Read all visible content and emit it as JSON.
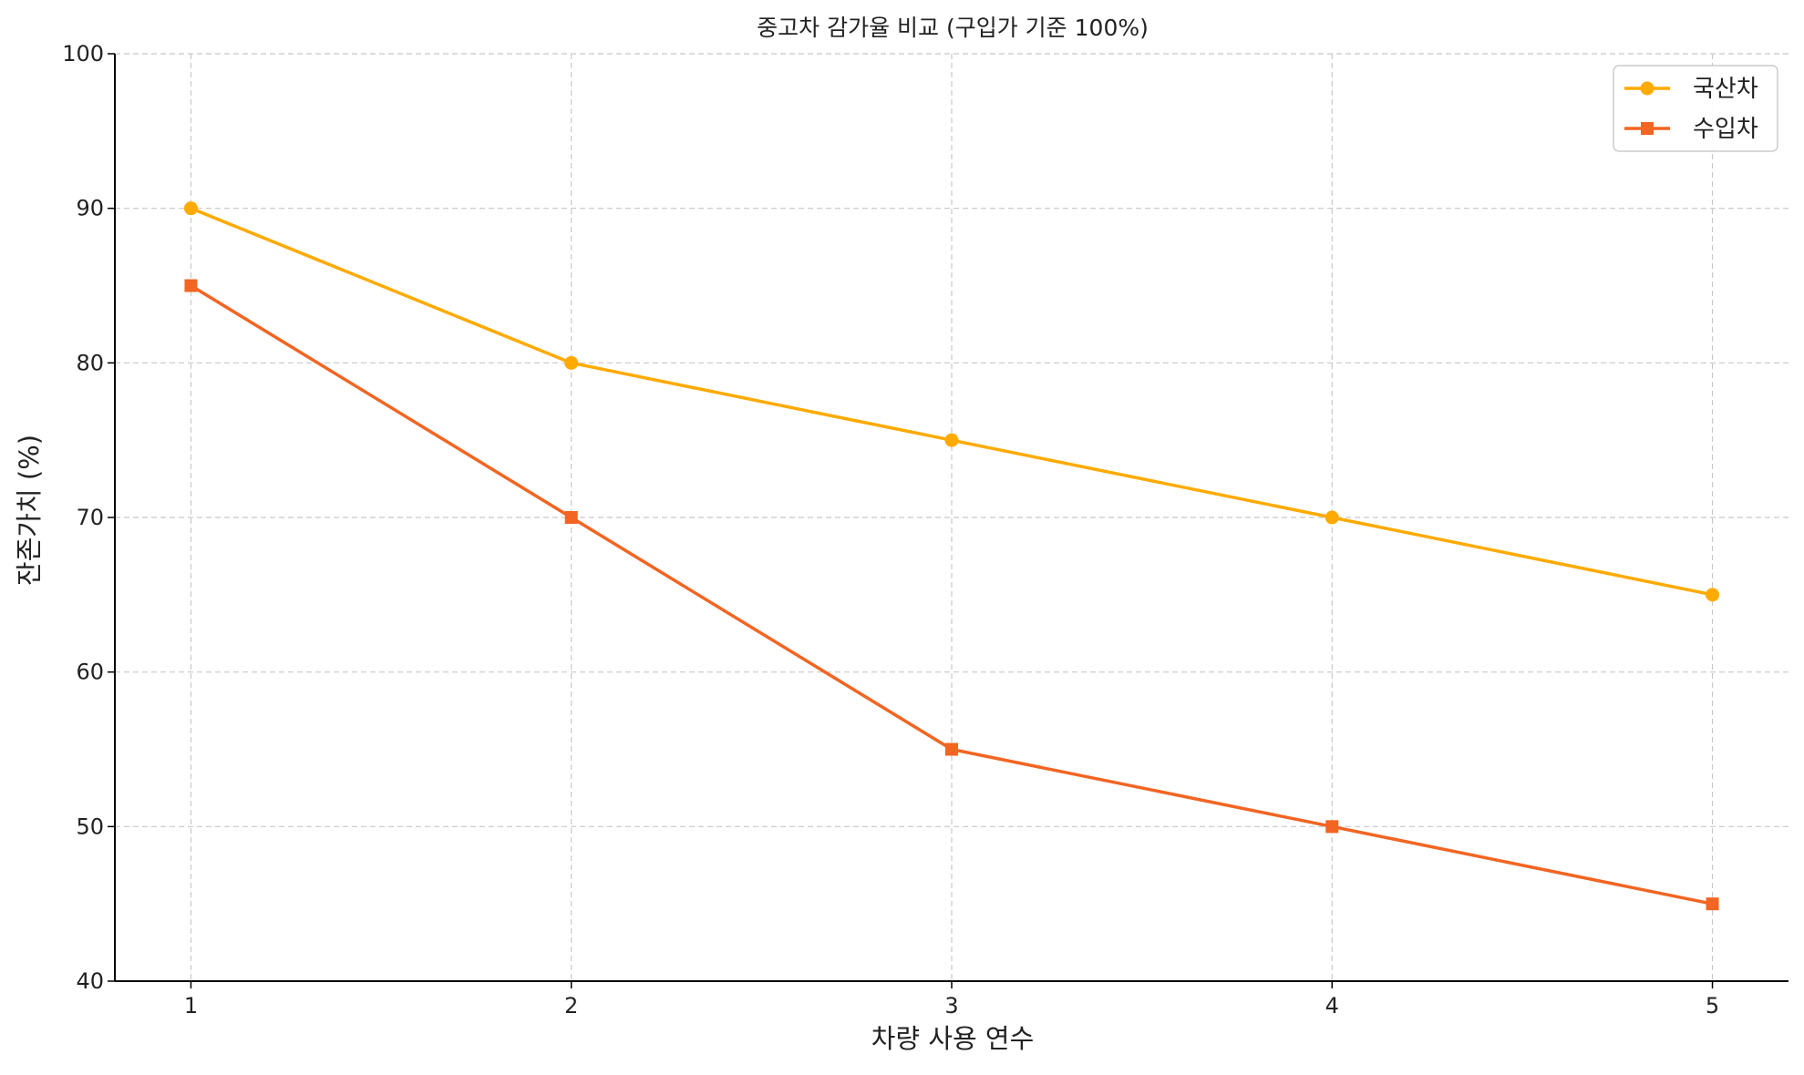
{
  "chart_data": {
    "type": "line",
    "title": "중고차 감가율 비교 (구입가 기준 100%)",
    "xlabel": "차량 사용 연수",
    "ylabel": "잔존가치 (%)",
    "x": [
      1,
      2,
      3,
      4,
      5
    ],
    "xlim": [
      0.8,
      5.2
    ],
    "ylim": [
      40,
      100
    ],
    "xticks": [
      1,
      2,
      3,
      4,
      5
    ],
    "yticks": [
      40,
      50,
      60,
      70,
      80,
      90,
      100
    ],
    "grid": true,
    "legend_position": "top-right",
    "series": [
      {
        "name": "국산차",
        "values": [
          90,
          80,
          75,
          70,
          65
        ],
        "color": "#FFAA00",
        "marker": "circle"
      },
      {
        "name": "수입차",
        "values": [
          85,
          70,
          55,
          50,
          45
        ],
        "color": "#F26522",
        "marker": "square"
      }
    ]
  }
}
